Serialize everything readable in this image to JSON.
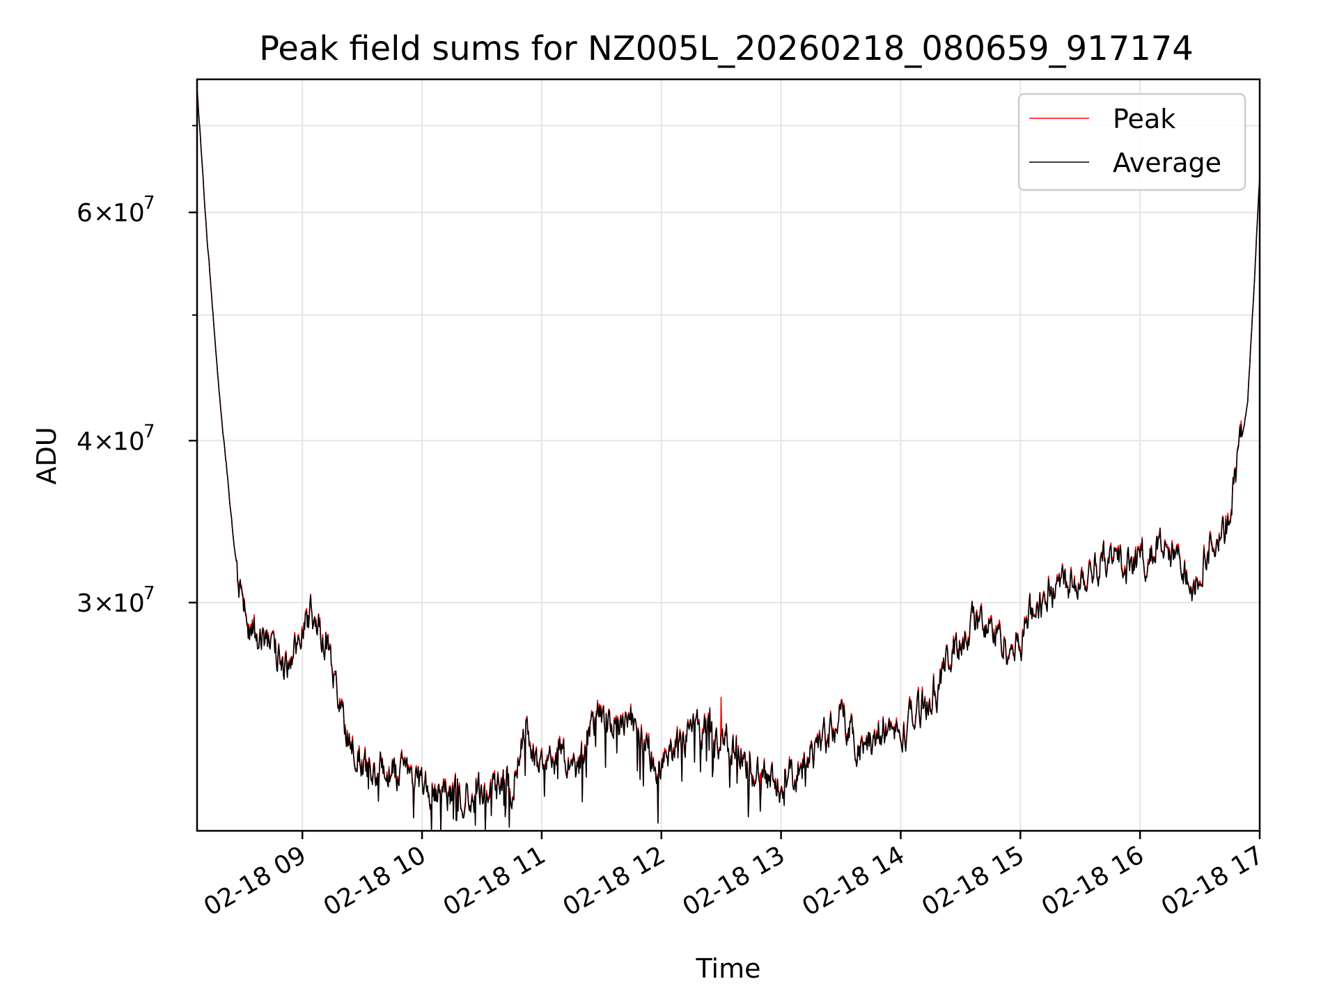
{
  "chart_data": {
    "type": "line",
    "title": "Peak field sums for NZ005L_20260218_080659_917174",
    "xlabel": "Time",
    "ylabel": "ADU",
    "yscale": "log",
    "grid": true,
    "legend_position": "top-right",
    "xlim_hours": [
      8.12,
      17.0
    ],
    "ylim": [
      20000000,
      76000000
    ],
    "x_ticks": [
      {
        "hour": 9,
        "label": "02-18 09"
      },
      {
        "hour": 10,
        "label": "02-18 10"
      },
      {
        "hour": 11,
        "label": "02-18 11"
      },
      {
        "hour": 12,
        "label": "02-18 12"
      },
      {
        "hour": 13,
        "label": "02-18 13"
      },
      {
        "hour": 14,
        "label": "02-18 14"
      },
      {
        "hour": 15,
        "label": "02-18 15"
      },
      {
        "hour": 16,
        "label": "02-18 16"
      },
      {
        "hour": 17,
        "label": "02-18 17"
      }
    ],
    "y_major_ticks": [
      {
        "value": 30000000,
        "mantissa": "3",
        "base": "10",
        "exponent": "7"
      },
      {
        "value": 40000000,
        "mantissa": "4",
        "base": "10",
        "exponent": "7"
      },
      {
        "value": 60000000,
        "mantissa": "6",
        "base": "10",
        "exponent": "7"
      }
    ],
    "y_minor_ticks": [
      50000000,
      70000000
    ],
    "anchors_hours": [
      8.12,
      8.2,
      8.3,
      8.42,
      8.5,
      8.6,
      8.75,
      8.9,
      9.0,
      9.08,
      9.2,
      9.3,
      9.5,
      9.75,
      10.0,
      10.25,
      10.5,
      10.75,
      10.85,
      11.0,
      11.15,
      11.3,
      11.45,
      11.6,
      11.75,
      11.9,
      12.0,
      12.15,
      12.3,
      12.5,
      12.65,
      12.8,
      13.0,
      13.2,
      13.35,
      13.5,
      13.6,
      13.7,
      13.85,
      14.0,
      14.15,
      14.3,
      14.45,
      14.6,
      14.8,
      14.95,
      15.1,
      15.3,
      15.5,
      15.7,
      15.9,
      16.0,
      16.15,
      16.3,
      16.45,
      16.6,
      16.7,
      16.8,
      16.9,
      16.95,
      17.0
    ],
    "anchors_adu": [
      75000000,
      58000000,
      44000000,
      34000000,
      29500000,
      28500000,
      27500000,
      26500000,
      28500000,
      29500000,
      28000000,
      25000000,
      22500000,
      22200000,
      21700000,
      21300000,
      21400000,
      21700000,
      23800000,
      22500000,
      23000000,
      22000000,
      24500000,
      24000000,
      24300000,
      23000000,
      22200000,
      23200000,
      24000000,
      23500000,
      23300000,
      22000000,
      21800000,
      22500000,
      23500000,
      24500000,
      23800000,
      23000000,
      24000000,
      23700000,
      24800000,
      25800000,
      27500000,
      29000000,
      28500000,
      27500000,
      29500000,
      31000000,
      31500000,
      32500000,
      32000000,
      32500000,
      33000000,
      32500000,
      31000000,
      33500000,
      33500000,
      37500000,
      43000000,
      52000000,
      64000000
    ],
    "series": [
      {
        "name": "Peak",
        "color": "#ff0000"
      },
      {
        "name": "Average",
        "color": "#000000"
      }
    ]
  }
}
